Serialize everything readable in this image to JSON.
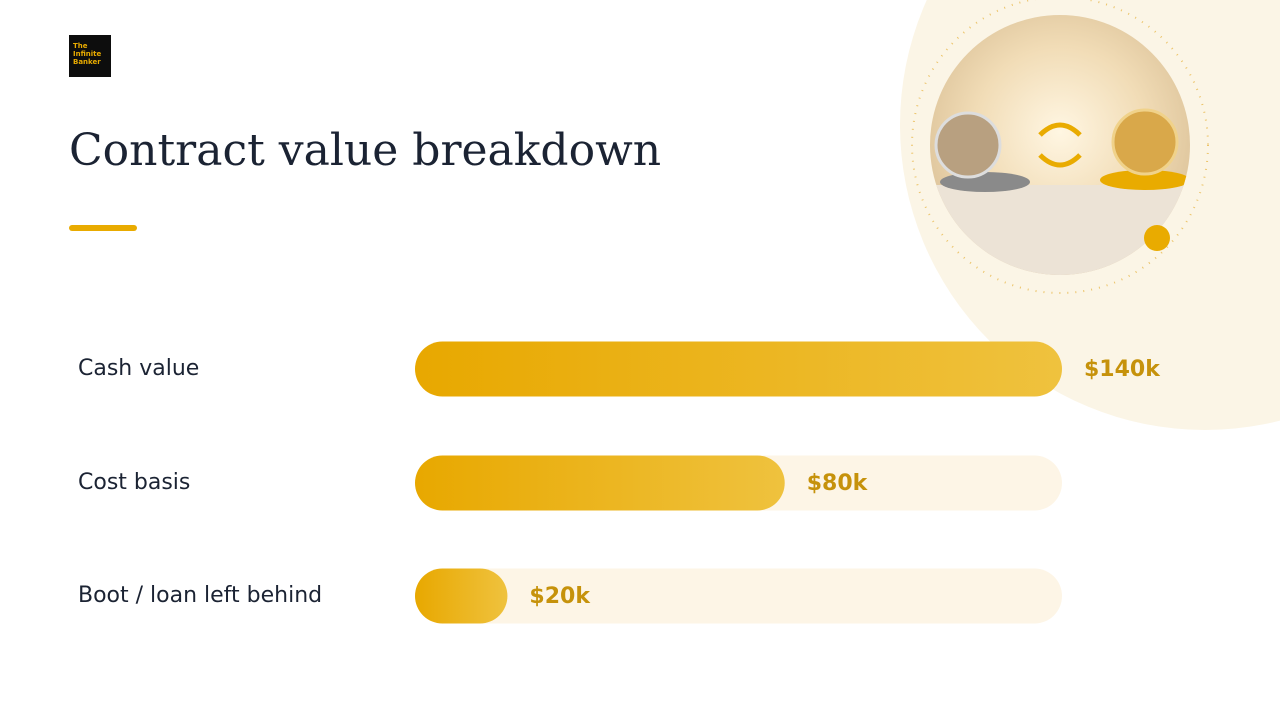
{
  "logo": [
    "The",
    "Infinite",
    "Banker"
  ],
  "chart_data": {
    "type": "bar",
    "orientation": "horizontal",
    "title": "Contract value breakdown",
    "categories": [
      "Cash value",
      "Cost basis",
      "Boot / loan left behind"
    ],
    "values": [
      140,
      80,
      20
    ],
    "value_labels": [
      "$140k",
      "$80k",
      "$20k"
    ],
    "color": "#e9ab00"
  }
}
